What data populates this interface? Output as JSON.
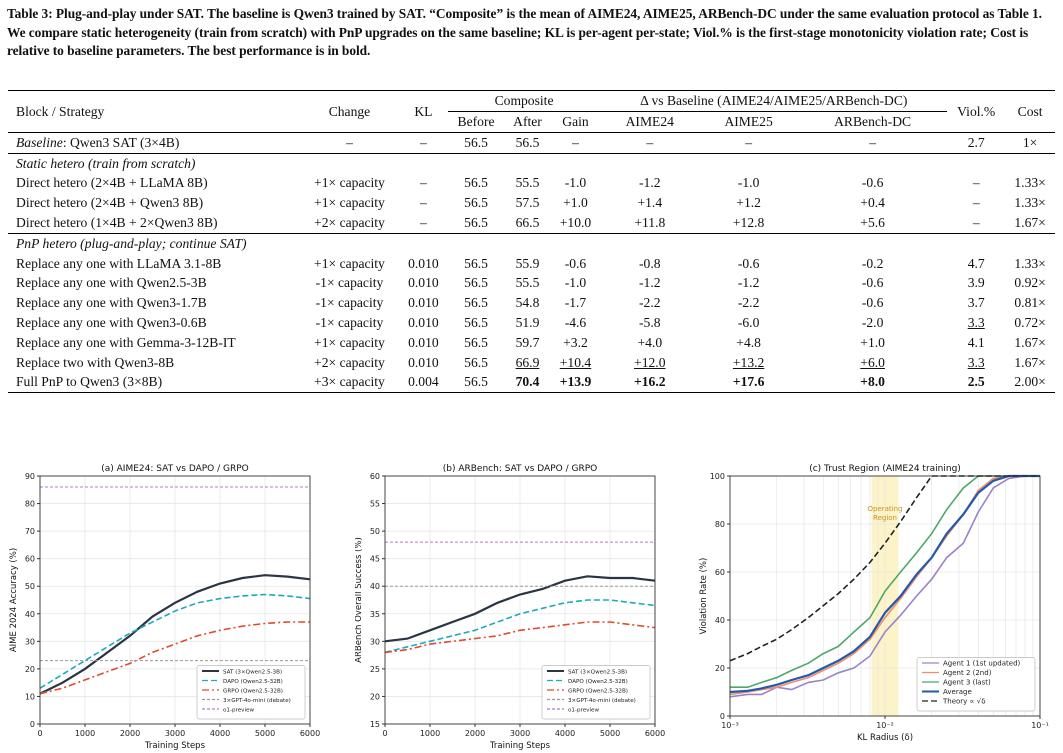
{
  "caption": "Table 3: Plug-and-play under SAT. The baseline is Qwen3 trained by SAT. “Composite” is the mean of AIME24, AIME25, ARBench-DC under the same evaluation protocol as Table 1. We compare static heterogeneity (train from scratch) with PnP upgrades on the same baseline; KL is per-agent per-state; Viol.% is the first-stage monotonicity violation rate; Cost is relative to baseline parameters. The best performance is in bold.",
  "table": {
    "headers": {
      "block": "Block / Strategy",
      "change": "Change",
      "kl": "KL",
      "composite": "Composite",
      "delta": "Δ vs Baseline (AIME24/AIME25/ARBench-DC)",
      "viol": "Viol.%",
      "cost": "Cost",
      "before": "Before",
      "after": "After",
      "gain": "Gain",
      "aime24": "AIME24",
      "aime25": "AIME25",
      "arbench": "ARBench-DC"
    },
    "baseline": {
      "label_italic": "Baseline",
      "label_rest": ": Qwen3 SAT (3×4B)",
      "cells": [
        "–",
        "–",
        "56.5",
        "56.5",
        "–",
        "–",
        "–",
        "–",
        "2.7",
        "1×"
      ]
    },
    "sections": [
      {
        "title": "Static hetero (train from scratch)",
        "rows": [
          {
            "label": "Direct hetero (2×4B + LLaMA 8B)",
            "cells": [
              "+1× capacity",
              "–",
              "56.5",
              "55.5",
              "-1.0",
              "-1.2",
              "-1.0",
              "-0.6",
              "–",
              "1.33×"
            ]
          },
          {
            "label": "Direct hetero (2×4B + Qwen3 8B)",
            "cells": [
              "+1× capacity",
              "–",
              "56.5",
              "57.5",
              "+1.0",
              "+1.4",
              "+1.2",
              "+0.4",
              "–",
              "1.33×"
            ]
          },
          {
            "label": "Direct hetero (1×4B + 2×Qwen3 8B)",
            "cells": [
              "+2× capacity",
              "–",
              "56.5",
              "66.5",
              "+10.0",
              "+11.8",
              "+12.8",
              "+5.6",
              "–",
              "1.67×"
            ]
          }
        ]
      },
      {
        "title": "PnP hetero (plug-and-play; continue SAT)",
        "rows": [
          {
            "label": "Replace any one with LLaMA 3.1-8B",
            "cells": [
              "+1× capacity",
              "0.010",
              "56.5",
              "55.9",
              "-0.6",
              "-0.8",
              "-0.6",
              "-0.2",
              "4.7",
              "1.33×"
            ]
          },
          {
            "label": "Replace any one with Qwen2.5-3B",
            "cells": [
              "-1× capacity",
              "0.010",
              "56.5",
              "55.5",
              "-1.0",
              "-1.2",
              "-1.2",
              "-0.6",
              "3.9",
              "0.92×"
            ]
          },
          {
            "label": "Replace any one with Qwen3-1.7B",
            "cells": [
              "-1× capacity",
              "0.010",
              "56.5",
              "54.8",
              "-1.7",
              "-2.2",
              "-2.2",
              "-0.6",
              "3.7",
              "0.81×"
            ]
          },
          {
            "label": "Replace any one with Qwen3-0.6B",
            "cells": [
              "-1× capacity",
              "0.010",
              "56.5",
              "51.9",
              "-4.6",
              "-5.8",
              "-6.0",
              "-2.0",
              "3.3",
              "0.72×"
            ]
          },
          {
            "label": "Replace any one with Gemma-3-12B-IT",
            "cells": [
              "+1× capacity",
              "0.010",
              "56.5",
              "59.7",
              "+3.2",
              "+4.0",
              "+4.8",
              "+1.0",
              "4.1",
              "1.67×"
            ]
          },
          {
            "label": "Replace two with Qwen3-8B",
            "cells": [
              "+2× capacity",
              "0.010",
              "56.5",
              "66.9",
              "+10.4",
              "+12.0",
              "+13.2",
              "+6.0",
              "3.3",
              "1.67×"
            ]
          },
          {
            "label": "Full PnP to Qwen3 (3×8B)",
            "cells": [
              "+3× capacity",
              "0.004",
              "56.5",
              "70.4",
              "+13.9",
              "+16.2",
              "+17.6",
              "+8.0",
              "2.5",
              "2.00×"
            ]
          }
        ]
      }
    ]
  },
  "chart_data": [
    {
      "type": "line",
      "title": "(a) AIME24: SAT vs DAPO / GRPO",
      "xlabel": "Training Steps",
      "ylabel": "AIME 2024 Accuracy (%)",
      "xlim": [
        0,
        6000
      ],
      "ylim": [
        0,
        90
      ],
      "xticks": [
        0,
        1000,
        2000,
        3000,
        4000,
        5000,
        6000
      ],
      "yticks": [
        0,
        10,
        20,
        30,
        40,
        50,
        60,
        70,
        80,
        90
      ],
      "x": [
        0,
        500,
        1000,
        1500,
        2000,
        2500,
        3000,
        3500,
        4000,
        4500,
        5000,
        5500,
        6000
      ],
      "series": [
        {
          "name": "SAT (3×Qwen2.5-3B)",
          "color": "#2b3445",
          "style": "solid",
          "values": [
            11,
            15,
            20,
            26,
            32,
            39,
            44,
            48,
            51,
            53,
            54,
            53.5,
            52.5
          ]
        },
        {
          "name": "DAPO (Qwen2.5-32B)",
          "color": "#1fa8c0",
          "style": "dashed",
          "values": [
            13,
            18,
            23,
            28,
            33,
            37,
            41,
            44,
            45.5,
            46.5,
            47,
            46.5,
            45.5
          ]
        },
        {
          "name": "GRPO (Qwen2.5-32B)",
          "color": "#e04a2f",
          "style": "dashdot",
          "values": [
            11,
            13,
            16,
            19,
            22,
            26,
            29,
            32,
            34,
            35.5,
            36.5,
            37,
            37
          ]
        },
        {
          "name": "3×GPT-4o-mini (debate)",
          "color": "#999999",
          "style": "dotted",
          "values": [
            23,
            23,
            23,
            23,
            23,
            23,
            23,
            23,
            23,
            23,
            23,
            23,
            23
          ]
        },
        {
          "name": "o1-preview",
          "color": "#b07cc8",
          "style": "dotted",
          "values": [
            86,
            86,
            86,
            86,
            86,
            86,
            86,
            86,
            86,
            86,
            86,
            86,
            86
          ]
        }
      ],
      "legend": "bottom-right"
    },
    {
      "type": "line",
      "title": "(b) ARBench: SAT vs DAPO / GRPO",
      "xlabel": "Training Steps",
      "ylabel": "ARBench Overall Success (%)",
      "xlim": [
        0,
        6000
      ],
      "ylim": [
        15,
        60
      ],
      "xticks": [
        0,
        1000,
        2000,
        3000,
        4000,
        5000,
        6000
      ],
      "yticks": [
        15,
        20,
        25,
        30,
        35,
        40,
        45,
        50,
        55,
        60
      ],
      "x": [
        0,
        500,
        1000,
        1500,
        2000,
        2500,
        3000,
        3500,
        4000,
        4500,
        5000,
        5500,
        6000
      ],
      "series": [
        {
          "name": "SAT (3×Qwen2.5-3B)",
          "color": "#2b3445",
          "style": "solid",
          "values": [
            30,
            30.5,
            32,
            33.5,
            35,
            37,
            38.5,
            39.5,
            41,
            41.8,
            41.5,
            41.5,
            41
          ]
        },
        {
          "name": "DAPO (Qwen2.5-32B)",
          "color": "#1fa8c0",
          "style": "dashed",
          "values": [
            28,
            29,
            30,
            31,
            32,
            33.5,
            35,
            36,
            37,
            37.5,
            37.5,
            37,
            36.5
          ]
        },
        {
          "name": "GRPO (Qwen2.5-32B)",
          "color": "#e04a2f",
          "style": "dashdot",
          "values": [
            28,
            28.5,
            29.5,
            30,
            30.5,
            31,
            32,
            32.5,
            33,
            33.5,
            33.5,
            33,
            32.5
          ]
        },
        {
          "name": "3×GPT-4o-mini (debate)",
          "color": "#999999",
          "style": "dotted",
          "values": [
            40,
            40,
            40,
            40,
            40,
            40,
            40,
            40,
            40,
            40,
            40,
            40,
            40
          ]
        },
        {
          "name": "o1-preview",
          "color": "#b07cc8",
          "style": "dotted",
          "values": [
            48,
            48,
            48,
            48,
            48,
            48,
            48,
            48,
            48,
            48,
            48,
            48,
            48
          ]
        }
      ],
      "legend": "bottom-right"
    },
    {
      "type": "line",
      "title": "(c) Trust Region (AIME24 training)",
      "xlabel": "KL Radius (δ)",
      "ylabel": "Violation Rate (%)",
      "xscale": "log",
      "xlim": [
        0.001,
        0.1
      ],
      "ylim": [
        0,
        100
      ],
      "xtick_labels": [
        "10⁻³",
        "10⁻²",
        "10⁻¹"
      ],
      "yticks": [
        0,
        20,
        40,
        60,
        80,
        100
      ],
      "annotation": "Operating Region",
      "x": [
        0.001,
        0.0013,
        0.0016,
        0.002,
        0.0025,
        0.0032,
        0.004,
        0.005,
        0.0063,
        0.008,
        0.01,
        0.0126,
        0.016,
        0.02,
        0.025,
        0.032,
        0.04,
        0.05,
        0.063,
        0.08,
        0.1
      ],
      "series": [
        {
          "name": "Agent 1 (1st updated)",
          "color": "#9a82cc",
          "style": "solid",
          "values": [
            8,
            9,
            9,
            12,
            11,
            14,
            15,
            18,
            20,
            25,
            35,
            42,
            50,
            57,
            66,
            72,
            85,
            95,
            99,
            100,
            100
          ]
        },
        {
          "name": "Agent 2 (2nd)",
          "color": "#ef8d6b",
          "style": "solid",
          "values": [
            9,
            10,
            11,
            12,
            14,
            16,
            19,
            22,
            26,
            32,
            41,
            49,
            58,
            66,
            75,
            84,
            94,
            99,
            100,
            100,
            100
          ]
        },
        {
          "name": "Agent 3 (last)",
          "color": "#4ea86a",
          "style": "solid",
          "values": [
            12,
            12,
            14,
            16,
            19,
            22,
            26,
            29,
            35,
            41,
            52,
            60,
            68,
            76,
            86,
            95,
            100,
            100,
            100,
            100,
            100
          ]
        },
        {
          "name": "Average",
          "color": "#2359a8",
          "style": "solid",
          "values": [
            10,
            10.5,
            11.5,
            13,
            15,
            17,
            20,
            23,
            27,
            33,
            43,
            50,
            59,
            66,
            76,
            84,
            93,
            98,
            100,
            100,
            100
          ]
        },
        {
          "name": "Theory ∝ √δ",
          "color": "#222222",
          "style": "dashed",
          "values": [
            23,
            26,
            29,
            32,
            36,
            41,
            46,
            51,
            57,
            64,
            72,
            81,
            91,
            100,
            100,
            100,
            100,
            100,
            100,
            100,
            100
          ]
        }
      ],
      "legend": "bottom-right"
    }
  ]
}
